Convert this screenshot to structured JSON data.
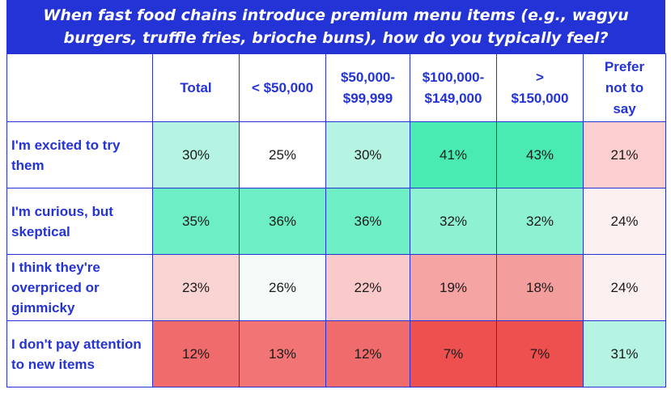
{
  "chart_data": {
    "type": "table",
    "title": "When fast food chains introduce premium menu items (e.g., wagyu burgers, truffle fries, brioche buns), how do you typically feel?",
    "columns": [
      "",
      "Total",
      "< $50,000",
      "$50,000-$99,999",
      "$100,000-$149,000",
      "> $150,000",
      "Prefer not to say"
    ],
    "column_lines": [
      [
        ""
      ],
      [
        "Total"
      ],
      [
        "< $50,000"
      ],
      [
        "$50,000-",
        "$99,999"
      ],
      [
        "$100,000-",
        "$149,000"
      ],
      [
        ">",
        "$150,000"
      ],
      [
        "Prefer",
        "not to",
        "say"
      ]
    ],
    "rows": [
      {
        "label": "I'm excited to try them",
        "values": [
          "30%",
          "25%",
          "30%",
          "41%",
          "43%",
          "21%"
        ],
        "colors": [
          "#b5f4e3",
          "#ffffff",
          "#b5f4e3",
          "#4aeab3",
          "#4aeab3",
          "#fbcfcf"
        ]
      },
      {
        "label": "I'm curious, but skeptical",
        "values": [
          "35%",
          "36%",
          "36%",
          "32%",
          "32%",
          "24%"
        ],
        "colors": [
          "#6deec4",
          "#6deec4",
          "#6deec4",
          "#8ef1d2",
          "#8ef1d2",
          "#fdf0f0"
        ]
      },
      {
        "label": "I think they're overpriced or gimmicky",
        "values": [
          "23%",
          "26%",
          "22%",
          "19%",
          "18%",
          "24%"
        ],
        "colors": [
          "#fad3d3",
          "#f4fbf8",
          "#fac9c9",
          "#f6a3a3",
          "#f49d9d",
          "#fdf0f0"
        ]
      },
      {
        "label": "I don't pay attention to new items",
        "values": [
          "12%",
          "13%",
          "12%",
          "7%",
          "7%",
          "31%"
        ],
        "colors": [
          "#f06b6b",
          "#f27474",
          "#f06b6b",
          "#ee5050",
          "#ee5050",
          "#b5f4e3"
        ]
      }
    ]
  },
  "colors": {
    "header_bg": "#2433d6",
    "border": "#2433d6",
    "label_text": "#2433d6"
  }
}
